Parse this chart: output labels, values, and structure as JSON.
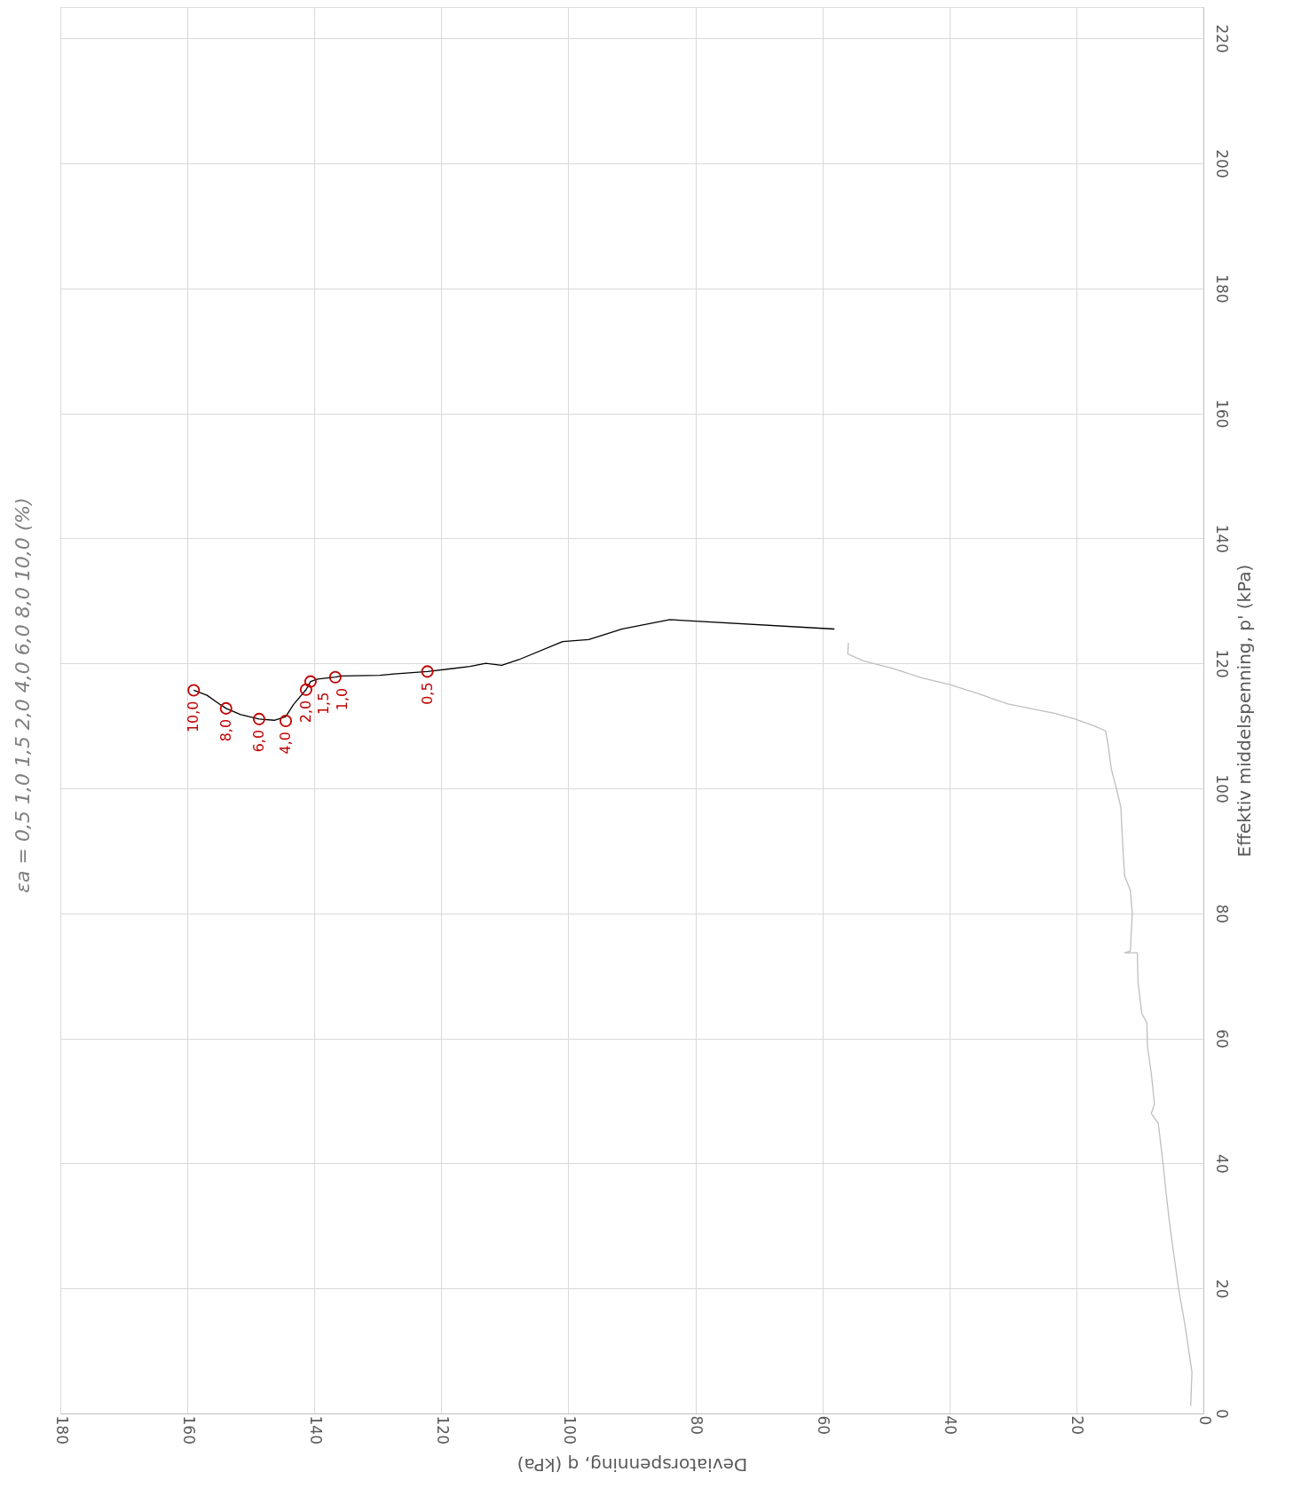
{
  "chart_data": {
    "type": "line",
    "xlabel": "Deviatorspenning, q (kPa)",
    "ylabel": "Effektiv middelspenning, p' (kPa)",
    "annotations": [
      "εa  =  0,5  1,0  1,5  2,0  4,0  6,0  8,0  10,0  (%)",
      {
        "text": "0,5",
        "x": 122.2,
        "y": 118.7
      },
      {
        "text": "1,0",
        "x": 135.5,
        "y": 117.8
      },
      {
        "text": "1,5",
        "x": 138.5,
        "y": 117.1
      },
      {
        "text": "2,0",
        "x": 141.3,
        "y": 115.8
      },
      {
        "text": "4,0",
        "x": 144.5,
        "y": 110.8
      },
      {
        "text": "6,0",
        "x": 148.7,
        "y": 111.1
      },
      {
        "text": "8,0",
        "x": 153.9,
        "y": 112.8
      },
      {
        "text": "10,0",
        "x": 159.0,
        "y": 115.7
      }
    ],
    "xlim": [
      180,
      0
    ],
    "xticks": [
      0,
      20,
      40,
      60,
      80,
      100,
      120,
      140,
      160,
      180
    ],
    "ylim": [
      0,
      225
    ],
    "yticks": [
      0,
      20,
      40,
      60,
      80,
      100,
      120,
      140,
      160,
      180,
      200,
      220
    ],
    "grid": true,
    "series": [
      {
        "color": "#000000",
        "x": [
          58.1,
          84.0,
          91.5,
          96.8,
          100.9,
          107.8,
          110.5,
          113.0,
          115.5,
          122.2,
          127.5,
          129.7,
          135.8,
          136.7,
          139.5,
          140.6,
          141.3,
          143.3,
          144.5,
          146.3,
          148.7,
          151.6,
          153.9,
          154.8,
          156.9,
          159.0
        ],
        "values": [
          125.5,
          127.0,
          125.5,
          123.8,
          123.5,
          120.6,
          119.7,
          120.0,
          119.5,
          118.7,
          118.3,
          118.1,
          118.0,
          117.8,
          117.5,
          117.1,
          115.8,
          113.4,
          111.5,
          110.9,
          111.1,
          111.8,
          112.8,
          113.4,
          114.9,
          115.7
        ]
      },
      {
        "color": "#bfbfbf",
        "x": [
          2.0,
          1.8,
          2.9,
          3.9,
          4.8,
          5.4,
          6.0,
          6.3,
          7.1,
          8.2,
          7.7,
          8.2,
          8.8,
          8.9,
          9.7,
          10.3,
          10.4,
          12.4,
          11.5,
          11.2,
          11.5,
          12.4,
          12.7,
          13.0,
          13.7,
          14.5,
          15.0,
          15.4,
          17.2,
          20.2,
          23.3,
          26.3,
          30.8,
          35.3,
          39.9,
          44.4,
          48.9,
          53.5,
          56.0,
          55.9
        ],
        "values": [
          1.2,
          6.6,
          14.2,
          19.9,
          26.5,
          31.1,
          36.5,
          39.5,
          46.4,
          48.0,
          49.5,
          54.4,
          58.7,
          62.5,
          64.0,
          69.1,
          73.7,
          73.7,
          74.0,
          80.1,
          83.7,
          86.0,
          90.9,
          97.0,
          100.0,
          103.1,
          106.9,
          109.2,
          110.0,
          111.1,
          112.0,
          112.6,
          113.5,
          115.1,
          116.6,
          117.7,
          119.2,
          120.4,
          121.5,
          123.3
        ]
      },
      {
        "type": "scatter",
        "color": "#c00000",
        "marker": "circle",
        "x": [
          122.2,
          136.7,
          140.6,
          141.3,
          144.5,
          148.7,
          153.9,
          159.0
        ],
        "values": [
          118.7,
          117.8,
          117.1,
          115.8,
          110.8,
          111.1,
          112.8,
          115.7
        ]
      }
    ]
  }
}
